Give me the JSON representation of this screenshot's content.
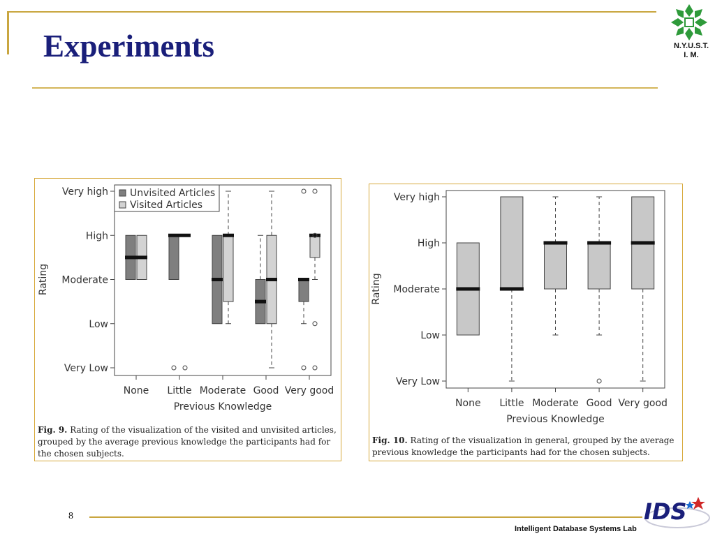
{
  "slide": {
    "title": "Experiments",
    "page_number": "8",
    "footer": "Intelligent Database Systems Lab",
    "logo_lines": [
      "N.Y.U.S.T.",
      "I. M."
    ],
    "ids_logo": "IDS",
    "accent_color": "#c9a640",
    "title_color": "#1a1f7a"
  },
  "figures": [
    {
      "label": "Fig. 9.",
      "caption": "Rating of the visualization of the visited and unvisited articles, grouped by the average previous knowledge the participants had for the chosen subjects."
    },
    {
      "label": "Fig. 10.",
      "caption": "Rating of the visualization in general, grouped by the average previous knowledge the participants had for the chosen subjects."
    }
  ],
  "chart_data": [
    {
      "type": "box",
      "xlabel": "Previous Knowledge",
      "ylabel": "Rating",
      "categories": [
        "None",
        "Little",
        "Moderate",
        "Good",
        "Very good"
      ],
      "y_ticks": [
        "Very Low",
        "Low",
        "Moderate",
        "High",
        "Very high"
      ],
      "ylim": [
        1,
        5
      ],
      "legend": {
        "position": "top-left",
        "entries": [
          "Unvisited Articles",
          "Visited Articles"
        ]
      },
      "series": [
        {
          "name": "Unvisited Articles",
          "color": "#7f7f7f",
          "boxes": [
            {
              "q1": 3,
              "median": 3.5,
              "q3": 4,
              "whisker_low": null,
              "whisker_high": null,
              "outliers": []
            },
            {
              "q1": 3,
              "median": 4,
              "q3": 4,
              "whisker_low": null,
              "whisker_high": null,
              "outliers": [
                1
              ]
            },
            {
              "q1": 2,
              "median": 3,
              "q3": 4,
              "whisker_low": null,
              "whisker_high": null,
              "outliers": []
            },
            {
              "q1": 2,
              "median": 2.5,
              "q3": 3,
              "whisker_low": null,
              "whisker_high": 4,
              "outliers": []
            },
            {
              "q1": 2.5,
              "median": 3,
              "q3": 3,
              "whisker_low": 2,
              "whisker_high": null,
              "outliers": [
                5,
                1
              ]
            }
          ]
        },
        {
          "name": "Visited Articles",
          "color": "#d3d3d3",
          "boxes": [
            {
              "q1": 3,
              "median": 3.5,
              "q3": 4,
              "whisker_low": null,
              "whisker_high": null,
              "outliers": []
            },
            {
              "q1": null,
              "median": 4,
              "q3": null,
              "whisker_low": null,
              "whisker_high": null,
              "outliers": [
                1
              ]
            },
            {
              "q1": 2.5,
              "median": 4,
              "q3": 4,
              "whisker_low": 2,
              "whisker_high": 5,
              "outliers": []
            },
            {
              "q1": 2,
              "median": 3,
              "q3": 4,
              "whisker_low": 1,
              "whisker_high": 5,
              "outliers": []
            },
            {
              "q1": 3.5,
              "median": 4,
              "q3": 4,
              "whisker_low": 3,
              "whisker_high": null,
              "outliers": [
                5,
                4,
                2,
                1
              ]
            }
          ]
        }
      ]
    },
    {
      "type": "box",
      "xlabel": "Previous Knowledge",
      "ylabel": "Rating",
      "categories": [
        "None",
        "Little",
        "Moderate",
        "Good",
        "Very good"
      ],
      "y_ticks": [
        "Very Low",
        "Low",
        "Moderate",
        "High",
        "Very high"
      ],
      "ylim": [
        1,
        5
      ],
      "series": [
        {
          "color": "#c8c8c8",
          "boxes": [
            {
              "q1": 2,
              "median": 3,
              "q3": 4,
              "whisker_low": null,
              "whisker_high": null,
              "outliers": []
            },
            {
              "q1": 3,
              "median": 3,
              "q3": 5,
              "whisker_low": 1,
              "whisker_high": null,
              "outliers": []
            },
            {
              "q1": 3,
              "median": 4,
              "q3": 4,
              "whisker_low": 2,
              "whisker_high": 5,
              "outliers": []
            },
            {
              "q1": 3,
              "median": 4,
              "q3": 4,
              "whisker_low": 2,
              "whisker_high": 5,
              "outliers": [
                1
              ]
            },
            {
              "q1": 3,
              "median": 4,
              "q3": 5,
              "whisker_low": 1,
              "whisker_high": null,
              "outliers": []
            }
          ]
        }
      ]
    }
  ]
}
